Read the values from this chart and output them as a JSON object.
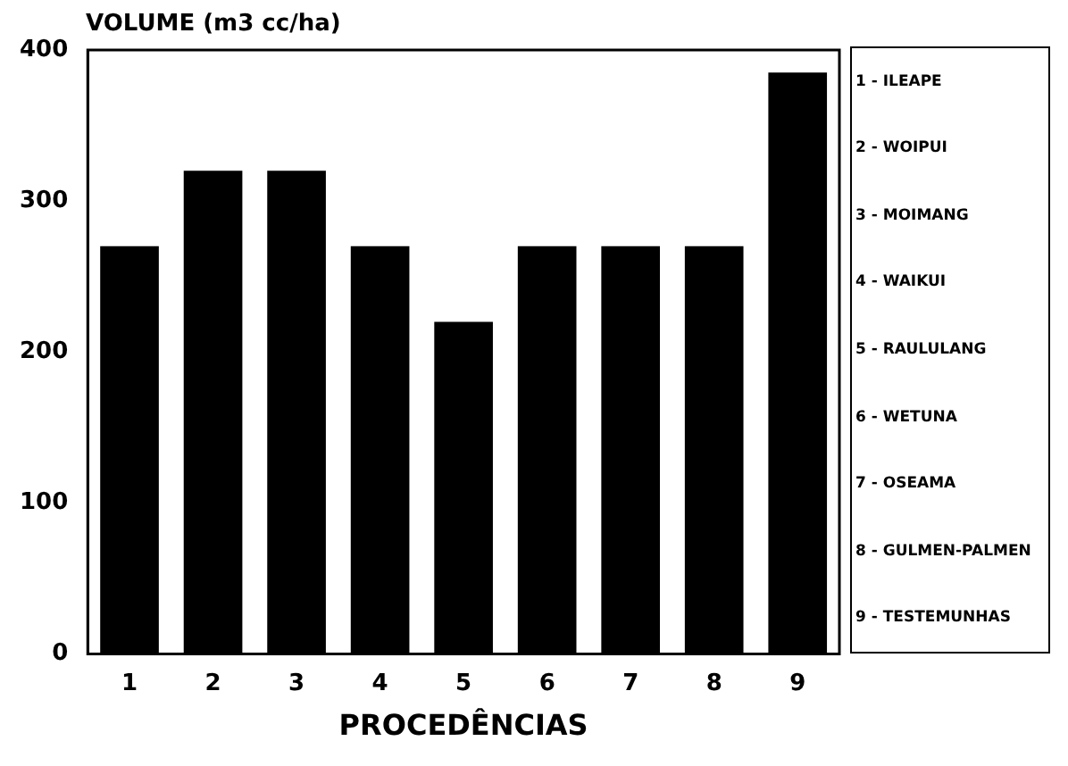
{
  "chart_data": {
    "type": "bar",
    "ylabel": "VOLUME (m3 cc/ha)",
    "xlabel": "PROCEDÊNCIAS",
    "categories": [
      "1",
      "2",
      "3",
      "4",
      "5",
      "6",
      "7",
      "8",
      "9"
    ],
    "values": [
      270,
      320,
      320,
      270,
      220,
      270,
      270,
      270,
      385
    ],
    "color": "#000000",
    "ylim": [
      0,
      400
    ],
    "yticks": [
      0,
      100,
      200,
      300,
      400
    ],
    "grid": false,
    "annotations": [
      "1 - ILEAPE",
      "2 - WOIPUI",
      "3 - MOIMANG",
      "4 - WAIKUI",
      "5 - RAULULANG",
      "6 - WETUNA",
      "7 - OSEAMA",
      "8 - GULMEN-PALMEN",
      "9 - TESTEMUNHAS"
    ]
  }
}
